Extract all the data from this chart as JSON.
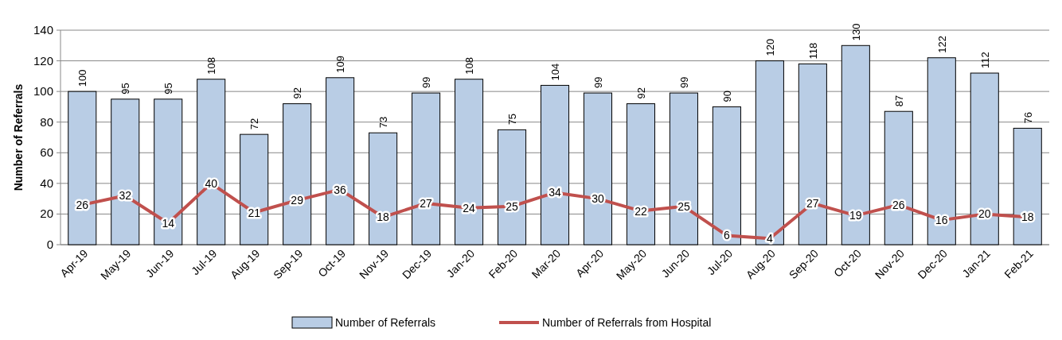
{
  "chart_data": {
    "type": "bar",
    "ylabel": "Number of Referrals",
    "categories": [
      "Apr-19",
      "May-19",
      "Jun-19",
      "Jul-19",
      "Aug-19",
      "Sep-19",
      "Oct-19",
      "Nov-19",
      "Dec-19",
      "Jan-20",
      "Feb-20",
      "Mar-20",
      "Apr-20",
      "May-20",
      "Jun-20",
      "Jul-20",
      "Aug-20",
      "Sep-20",
      "Oct-20",
      "Nov-20",
      "Dec-20",
      "Jan-21",
      "Feb-21"
    ],
    "series": [
      {
        "name": "Number of Referrals",
        "color": "#b9cde5",
        "values": [
          100,
          95,
          95,
          108,
          72,
          92,
          109,
          73,
          99,
          108,
          75,
          104,
          99,
          92,
          99,
          90,
          120,
          118,
          130,
          87,
          122,
          112,
          76
        ]
      },
      {
        "name": "Number of Referrals from Hospital",
        "type": "line",
        "color": "#c0504d",
        "values": [
          26,
          32,
          14,
          40,
          21,
          29,
          36,
          18,
          27,
          24,
          25,
          34,
          30,
          22,
          25,
          6,
          4,
          27,
          19,
          26,
          16,
          20,
          18
        ]
      }
    ],
    "ylim": [
      0,
      140
    ],
    "yticks": [
      0,
      20,
      40,
      60,
      80,
      100,
      120,
      140
    ],
    "grid": "y",
    "legend": "bottom",
    "data_labels": true,
    "line_style": "solid"
  }
}
